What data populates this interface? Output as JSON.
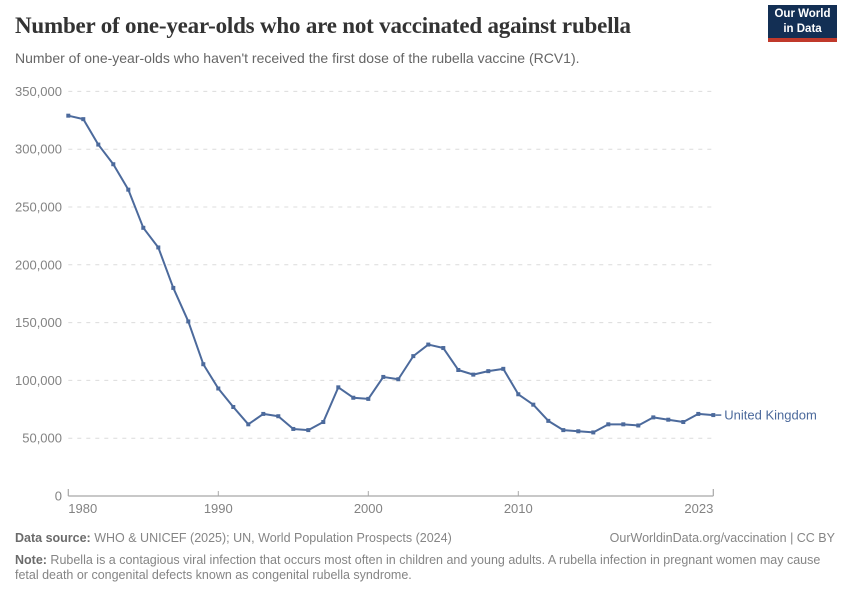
{
  "header": {
    "title": "Number of one-year-olds who are not vaccinated against rubella",
    "subtitle": "Number of one-year-olds who haven't received the first dose of the rubella vaccine (RCV1).",
    "logo": {
      "line1": "Our World",
      "line2": "in Data",
      "bg_color": "#132F54",
      "accent_color": "#C0392B"
    }
  },
  "chart_data": {
    "type": "line",
    "title": "Number of one-year-olds who are not vaccinated against rubella",
    "subtitle": "Number of one-year-olds who haven't received the first dose of the rubella vaccine (RCV1).",
    "xlabel": "",
    "ylabel": "",
    "xlim": [
      1980,
      2023
    ],
    "ylim": [
      0,
      350000
    ],
    "grid": "horizontal-dashed",
    "legend_position": "end-of-line",
    "axis_color": "#a8a8a8",
    "grid_color": "#dcdcdc",
    "tick_text_color": "#838383",
    "x": [
      1980,
      1981,
      1982,
      1983,
      1984,
      1985,
      1986,
      1987,
      1988,
      1989,
      1990,
      1991,
      1992,
      1993,
      1994,
      1995,
      1996,
      1997,
      1998,
      1999,
      2000,
      2001,
      2002,
      2003,
      2004,
      2005,
      2006,
      2007,
      2008,
      2009,
      2010,
      2011,
      2012,
      2013,
      2014,
      2015,
      2016,
      2017,
      2018,
      2019,
      2020,
      2021,
      2022,
      2023
    ],
    "series": [
      {
        "name": "United Kingdom",
        "color": "#4C6A9C",
        "values": [
          329000,
          326000,
          304000,
          287000,
          265000,
          232000,
          215000,
          180000,
          151000,
          114000,
          93000,
          77000,
          62000,
          71000,
          69000,
          58000,
          57000,
          64000,
          94000,
          85000,
          84000,
          103000,
          101000,
          121000,
          131000,
          128000,
          109000,
          105000,
          108000,
          110000,
          88000,
          79000,
          65000,
          57000,
          56000,
          55000,
          62000,
          62000,
          61000,
          68000,
          66000,
          64000,
          71000,
          70000
        ]
      }
    ],
    "yticks": [
      {
        "v": 0,
        "label": "0"
      },
      {
        "v": 50000,
        "label": "50,000"
      },
      {
        "v": 100000,
        "label": "100,000"
      },
      {
        "v": 150000,
        "label": "150,000"
      },
      {
        "v": 200000,
        "label": "200,000"
      },
      {
        "v": 250000,
        "label": "250,000"
      },
      {
        "v": 300000,
        "label": "300,000"
      },
      {
        "v": 350000,
        "label": "350,000"
      }
    ],
    "xticks": [
      {
        "year": 1980,
        "label": "1980",
        "anchor": "start"
      },
      {
        "year": 1990,
        "label": "1990",
        "anchor": "middle"
      },
      {
        "year": 2000,
        "label": "2000",
        "anchor": "middle"
      },
      {
        "year": 2010,
        "label": "2010",
        "anchor": "middle"
      },
      {
        "year": 2023,
        "label": "2023",
        "anchor": "end"
      }
    ]
  },
  "footer": {
    "datasource_label": "Data source:",
    "datasource_text": " WHO & UNICEF (2025); UN, World Population Prospects (2024)",
    "link_text": "OurWorldinData.org/vaccination | CC BY",
    "note_label": "Note:",
    "note_text": " Rubella is a contagious viral infection that occurs most often in children and young adults. A rubella infection in pregnant women may cause fetal death or congenital defects known as congenital rubella syndrome."
  }
}
